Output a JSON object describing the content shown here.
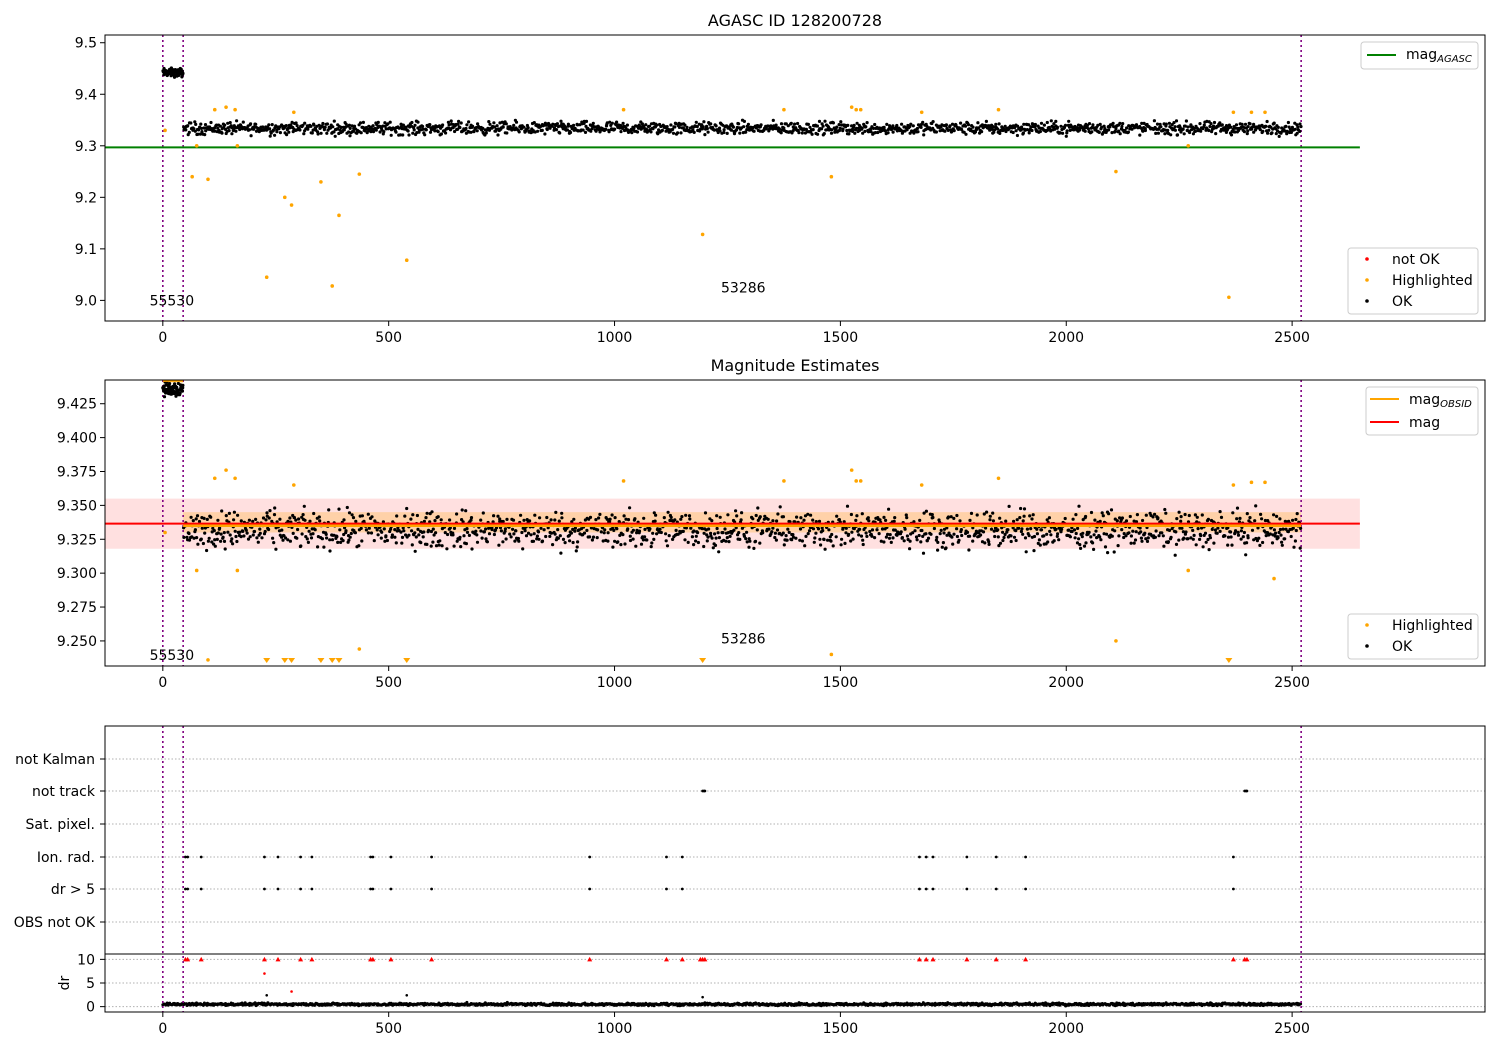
{
  "chart_data": [
    {
      "type": "scatter",
      "title": "AGASC ID 128200728",
      "xlim": [
        -128,
        2927
      ],
      "ylim": [
        8.96,
        9.515
      ],
      "xticks": [
        0,
        500,
        1000,
        1500,
        2000,
        2500
      ],
      "yticks": [
        9.0,
        9.1,
        9.2,
        9.3,
        9.4,
        9.5
      ],
      "ytick_labels": [
        "9.0",
        "9.1",
        "9.2",
        "9.3",
        "9.4",
        "9.5"
      ],
      "vlines": [
        0,
        45,
        2520
      ],
      "hline": {
        "name": "mag_AGASC",
        "y": 9.297,
        "x": [
          -128,
          2650
        ],
        "color": "#008000"
      },
      "annotations": [
        {
          "text": "55530",
          "x": 20,
          "y": 8.99
        },
        {
          "text": "53286",
          "x": 1285,
          "y": 9.015
        }
      ],
      "legend_lines": [
        {
          "label": "mag",
          "subscript": "AGASC",
          "color": "#008000"
        }
      ],
      "legend_markers": [
        {
          "label": "not OK",
          "color": "#ff0000"
        },
        {
          "label": "Highlighted",
          "color": "#ffa500"
        },
        {
          "label": "OK",
          "color": "#000000"
        }
      ],
      "series": [
        {
          "name": "OK",
          "color": "#000000",
          "segments": [
            {
              "x0": 0,
              "x1": 45,
              "base": 9.442,
              "amp": 0.012,
              "n": 70
            },
            {
              "x0": 45,
              "x1": 2520,
              "base": 9.334,
              "amp": 0.018,
              "n": 1600
            }
          ]
        },
        {
          "name": "Highlighted",
          "color": "#ffa500",
          "points": [
            [
              5,
              9.33
            ],
            [
              65,
              9.24
            ],
            [
              75,
              9.3
            ],
            [
              100,
              9.235
            ],
            [
              115,
              9.37
            ],
            [
              140,
              9.375
            ],
            [
              160,
              9.37
            ],
            [
              165,
              9.3
            ],
            [
              230,
              9.045
            ],
            [
              270,
              9.2
            ],
            [
              285,
              9.185
            ],
            [
              290,
              9.365
            ],
            [
              350,
              9.23
            ],
            [
              375,
              9.028
            ],
            [
              390,
              9.165
            ],
            [
              435,
              9.245
            ],
            [
              540,
              9.078
            ],
            [
              1020,
              9.37
            ],
            [
              1195,
              9.128
            ],
            [
              1375,
              9.37
            ],
            [
              1480,
              9.24
            ],
            [
              1525,
              9.375
            ],
            [
              1535,
              9.37
            ],
            [
              1545,
              9.37
            ],
            [
              1680,
              9.365
            ],
            [
              1850,
              9.37
            ],
            [
              2110,
              9.25
            ],
            [
              2270,
              9.3
            ],
            [
              2360,
              9.006
            ],
            [
              2370,
              9.365
            ],
            [
              2410,
              9.365
            ],
            [
              2440,
              9.365
            ]
          ]
        }
      ]
    },
    {
      "type": "scatter",
      "title": "Magnitude Estimates",
      "xlim": [
        -128,
        2927
      ],
      "ylim": [
        9.2315,
        9.4425
      ],
      "xticks": [
        0,
        500,
        1000,
        1500,
        2000,
        2500
      ],
      "yticks": [
        9.25,
        9.275,
        9.3,
        9.325,
        9.35,
        9.375,
        9.4,
        9.425
      ],
      "ytick_labels": [
        "9.250",
        "9.275",
        "9.300",
        "9.325",
        "9.350",
        "9.375",
        "9.400",
        "9.425"
      ],
      "vlines": [
        0,
        45,
        2520
      ],
      "mag": {
        "y": 9.3365,
        "band": [
          9.318,
          9.355
        ],
        "x": [
          -128,
          2650
        ],
        "color": "#ff0000"
      },
      "mag_obsid": {
        "band": [
          9.33,
          9.345
        ],
        "color": "#ffa500",
        "segments": [
          {
            "x0": 0,
            "x1": 45,
            "y": 9.442
          },
          {
            "x0": 45,
            "x1": 2520,
            "y": 9.335
          }
        ]
      },
      "annotations": [
        {
          "text": "55530",
          "x": 20,
          "y": 9.236
        },
        {
          "text": "53286",
          "x": 1285,
          "y": 9.248
        }
      ],
      "legend_lines": [
        {
          "label": "mag",
          "subscript": "OBSID",
          "color": "#ffa500"
        },
        {
          "label": "mag",
          "subscript": "",
          "color": "#ff0000"
        }
      ],
      "legend_markers": [
        {
          "label": "Highlighted",
          "color": "#ffa500"
        },
        {
          "label": "OK",
          "color": "#000000"
        }
      ],
      "series": [
        {
          "name": "OK",
          "color": "#000000",
          "segments": [
            {
              "x0": 0,
              "x1": 45,
              "base": 9.436,
              "amp": 0.008,
              "n": 70
            },
            {
              "x0": 45,
              "x1": 2520,
              "base": 9.332,
              "amp": 0.02,
              "n": 1600
            }
          ]
        },
        {
          "name": "Highlighted",
          "color": "#ffa500",
          "points": [
            [
              5,
              9.33
            ],
            [
              75,
              9.302
            ],
            [
              100,
              9.236
            ],
            [
              115,
              9.37
            ],
            [
              140,
              9.376
            ],
            [
              160,
              9.37
            ],
            [
              165,
              9.302
            ],
            [
              290,
              9.365
            ],
            [
              435,
              9.244
            ],
            [
              1020,
              9.368
            ],
            [
              1375,
              9.368
            ],
            [
              1480,
              9.24
            ],
            [
              1525,
              9.376
            ],
            [
              1535,
              9.368
            ],
            [
              1545,
              9.368
            ],
            [
              1680,
              9.365
            ],
            [
              1850,
              9.37
            ],
            [
              2110,
              9.25
            ],
            [
              2270,
              9.302
            ],
            [
              2370,
              9.365
            ],
            [
              2410,
              9.367
            ],
            [
              2440,
              9.367
            ],
            [
              2460,
              9.296
            ]
          ]
        },
        {
          "name": "below-range",
          "color": "#ffa500",
          "marker": "triangle-down",
          "x": [
            230,
            270,
            285,
            350,
            375,
            390,
            540,
            1195,
            2360
          ]
        }
      ]
    },
    {
      "type": "scatter",
      "xlim": [
        -128,
        2927
      ],
      "categories": [
        "not Kalman",
        "not track",
        "Sat. pixel.",
        "Ion. rad.",
        "dr > 5",
        "OBS not OK"
      ],
      "vlines": [
        0,
        45,
        2520
      ],
      "flags": {
        "not track": [
          1195,
          1198,
          1200,
          2395,
          2398,
          2400
        ],
        "Ion. rad.": [
          50,
          55,
          85,
          225,
          255,
          305,
          330,
          460,
          465,
          505,
          595,
          945,
          1115,
          1150,
          1675,
          1690,
          1705,
          1780,
          1845,
          1910,
          2370
        ],
        "dr > 5": [
          50,
          55,
          85,
          225,
          255,
          305,
          330,
          460,
          465,
          505,
          595,
          945,
          1115,
          1150,
          1675,
          1690,
          1705,
          1780,
          1845,
          1910,
          2370
        ]
      },
      "dr": {
        "ylabel": "dr",
        "ylim": [
          -0.5,
          10.5
        ],
        "yticks": [
          0,
          5,
          10
        ],
        "ytick_labels": [
          "0",
          "5",
          "10"
        ],
        "capped_x": [
          50,
          55,
          85,
          225,
          255,
          305,
          330,
          460,
          465,
          505,
          595,
          945,
          1115,
          1150,
          1190,
          1195,
          1200,
          1675,
          1690,
          1705,
          1780,
          1845,
          1910,
          2370,
          2395,
          2400
        ],
        "red_points": [
          [
            225,
            7.0
          ],
          [
            285,
            3.2
          ]
        ],
        "outliers": [
          [
            230,
            2.4
          ],
          [
            540,
            2.4
          ],
          [
            1195,
            2.0
          ]
        ],
        "baseline": {
          "x0": 0,
          "x1": 2520,
          "base": 0.5,
          "amp": 0.4,
          "n": 1700
        }
      }
    }
  ]
}
